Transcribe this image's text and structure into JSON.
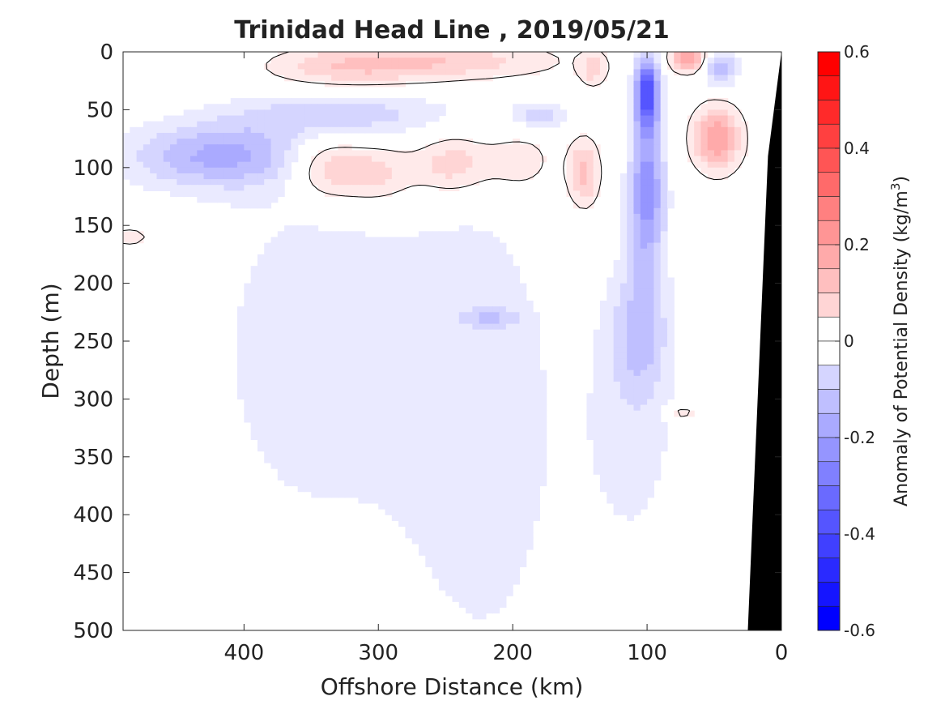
{
  "chart_data": {
    "type": "heatmap",
    "title": "Trinidad Head Line , 2019/05/21",
    "xlabel": "Offshore Distance (km)",
    "ylabel": "Depth (m)",
    "x_reversed": true,
    "xlim": [
      490,
      0
    ],
    "ylim": [
      0,
      500
    ],
    "y_reversed": true,
    "x_ticks": [
      "400",
      "300",
      "200",
      "100",
      "0"
    ],
    "x_tick_values": [
      400,
      300,
      200,
      100,
      0
    ],
    "y_ticks": [
      "0",
      "50",
      "100",
      "150",
      "200",
      "250",
      "300",
      "350",
      "400",
      "450",
      "500"
    ],
    "y_tick_values": [
      0,
      50,
      100,
      150,
      200,
      250,
      300,
      350,
      400,
      450,
      500
    ],
    "colorbar": {
      "label_main": "Anomaly of Potential Density (kg/m",
      "label_sup": "3",
      "label_end": ")",
      "range": [
        -0.6,
        0.6
      ],
      "step": 0.05,
      "tick_values": [
        0.6,
        0.4,
        0.2,
        0,
        -0.2,
        -0.4,
        -0.6
      ],
      "tick_labels": [
        "0.6",
        "0.4",
        "0.2",
        "0",
        "-0.2",
        "-0.4",
        "-0.6"
      ],
      "negative_color": "#0000ff",
      "positive_color": "#ff0000",
      "zero_color": "#ffffff"
    },
    "contour_levels": [
      0
    ],
    "bathymetry_color": "#000000",
    "bathymetry": [
      {
        "x": 0,
        "depth": 0
      },
      {
        "x": 10,
        "depth": 90
      },
      {
        "x": 25,
        "depth": 500
      },
      {
        "x": 0,
        "depth": 500
      }
    ],
    "features": [
      {
        "label": "positive surface band",
        "x": 255,
        "depth": 8,
        "sx": 90,
        "sy": 18,
        "value": 0.15
      },
      {
        "label": "positive surface band west",
        "x": 330,
        "depth": 15,
        "sx": 60,
        "sy": 18,
        "value": 0.1
      },
      {
        "label": "positive subsurface",
        "x": 340,
        "depth": 100,
        "sx": 28,
        "sy": 28,
        "value": 0.17
      },
      {
        "label": "positive subsurface",
        "x": 300,
        "depth": 105,
        "sx": 30,
        "sy": 28,
        "value": 0.14
      },
      {
        "label": "positive subsurface",
        "x": 245,
        "depth": 97,
        "sx": 28,
        "sy": 28,
        "value": 0.15
      },
      {
        "label": "positive subsurface",
        "x": 195,
        "depth": 95,
        "sx": 28,
        "sy": 30,
        "value": 0.1
      },
      {
        "label": "positive lens",
        "x": 147,
        "depth": 105,
        "sx": 12,
        "sy": 30,
        "value": 0.18
      },
      {
        "label": "positive near surface",
        "x": 140,
        "depth": 15,
        "sx": 10,
        "sy": 15,
        "value": 0.12
      },
      {
        "label": "positive lens east",
        "x": 48,
        "depth": 75,
        "sx": 18,
        "sy": 28,
        "value": 0.25
      },
      {
        "label": "positive cap",
        "x": 70,
        "depth": 5,
        "sx": 13,
        "sy": 12,
        "value": 0.25
      },
      {
        "label": "positive deep eddy",
        "x": 75,
        "depth": 312,
        "sx": 14,
        "sy": 7,
        "value": 0.1
      },
      {
        "label": "positive west edge",
        "x": 485,
        "depth": 160,
        "sx": 15,
        "sy": 8,
        "value": 0.1
      },
      {
        "label": "negative jet core",
        "x": 100,
        "depth": 35,
        "sx": 9,
        "sy": 32,
        "value": -0.42
      },
      {
        "label": "negative jet column",
        "x": 100,
        "depth": 120,
        "sx": 13,
        "sy": 65,
        "value": -0.28
      },
      {
        "label": "negative jet deep",
        "x": 105,
        "depth": 240,
        "sx": 20,
        "sy": 55,
        "value": -0.14
      },
      {
        "label": "negative near surface",
        "x": 45,
        "depth": 15,
        "sx": 12,
        "sy": 15,
        "value": -0.2
      },
      {
        "label": "negative west subsurface",
        "x": 420,
        "depth": 90,
        "sx": 70,
        "sy": 28,
        "value": -0.2
      },
      {
        "label": "negative west band",
        "x": 330,
        "depth": 55,
        "sx": 80,
        "sy": 18,
        "value": -0.12
      },
      {
        "label": "negative small",
        "x": 180,
        "depth": 55,
        "sx": 20,
        "sy": 12,
        "value": -0.12
      },
      {
        "label": "negative mid",
        "x": 215,
        "depth": 230,
        "sx": 20,
        "sy": 8,
        "value": -0.1
      },
      {
        "label": "negative background west",
        "x": 345,
        "depth": 260,
        "sx": 95,
        "sy": 190,
        "value": -0.075
      },
      {
        "label": "negative background centre",
        "x": 220,
        "depth": 330,
        "sx": 62,
        "sy": 230,
        "value": -0.075
      },
      {
        "label": "negative background east",
        "x": 110,
        "depth": 320,
        "sx": 38,
        "sy": 130,
        "value": -0.07
      }
    ]
  }
}
